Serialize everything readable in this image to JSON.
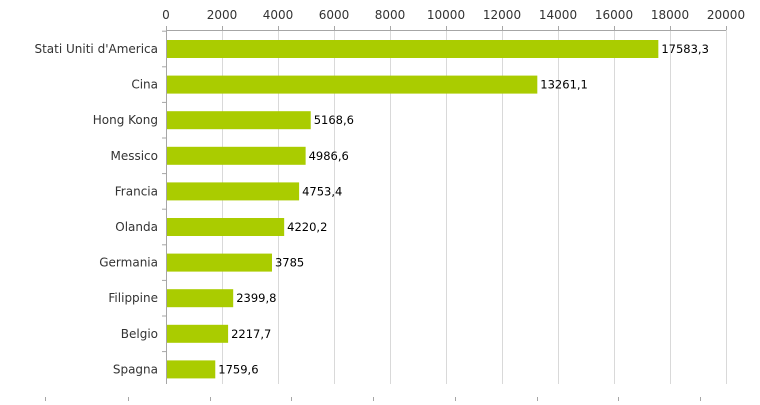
{
  "chart_data": {
    "type": "bar",
    "orientation": "horizontal",
    "title": "",
    "xlabel": "",
    "ylabel": "",
    "xlim": [
      0,
      20000
    ],
    "x_ticks": [
      0,
      2000,
      4000,
      6000,
      8000,
      10000,
      12000,
      14000,
      16000,
      18000,
      20000
    ],
    "x_axis_position": "top",
    "grid": true,
    "legend": "none",
    "bar_color": "#aacc00",
    "categories": [
      "Stati Uniti d'America",
      "Cina",
      "Hong Kong",
      "Messico",
      "Francia",
      "Olanda",
      "Germania",
      "Filippine",
      "Belgio",
      "Spagna"
    ],
    "values": [
      17583.3,
      13261.1,
      5168.6,
      4986.6,
      4753.4,
      4220.2,
      3785,
      2399.8,
      2217.7,
      1759.6
    ],
    "value_labels": [
      "17583,3",
      "13261,1",
      "5168,6",
      "4986,6",
      "4753,4",
      "4220,2",
      "3785",
      "2399,8",
      "2217,7",
      "1759,6"
    ]
  }
}
